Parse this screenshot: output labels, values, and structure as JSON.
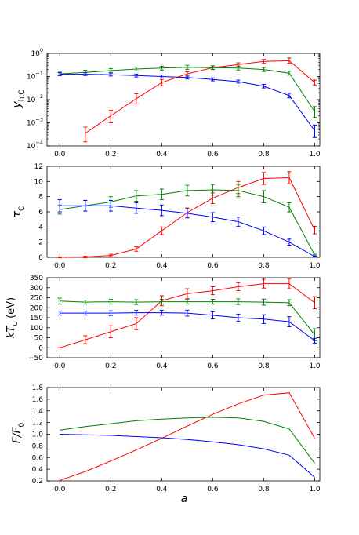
{
  "chart_data": [
    {
      "type": "line",
      "ylabel": "y_{h,C}",
      "xlabel": "",
      "yscale": "log",
      "ylim": [
        0.0001,
        1
      ],
      "xlim": [
        -0.05,
        1.02
      ],
      "yticks": [
        "10^{-4}",
        "10^{-3}",
        "10^{-2}",
        "10^{-1}",
        "10^{0}"
      ],
      "xticks": [
        "0.0",
        "0.2",
        "0.4",
        "0.6",
        "0.8",
        "1.0"
      ],
      "series": [
        {
          "color": "#ff0000",
          "x": [
            0.1,
            0.2,
            0.3,
            0.4,
            0.5,
            0.6,
            0.7,
            0.8,
            0.9,
            1.0
          ],
          "y": [
            0.00035,
            0.002,
            0.011,
            0.055,
            0.13,
            0.24,
            0.33,
            0.45,
            0.48,
            0.055
          ],
          "err_low": [
            0.0002,
            0.001,
            0.0045,
            0.015,
            0.025,
            0.035,
            0.05,
            0.08,
            0.1,
            0.012
          ],
          "err_high": [
            0.0003,
            0.0015,
            0.007,
            0.02,
            0.03,
            0.045,
            0.06,
            0.1,
            0.15,
            0.015
          ]
        },
        {
          "color": "#008000",
          "x": [
            0.0,
            0.1,
            0.2,
            0.3,
            0.4,
            0.5,
            0.6,
            0.7,
            0.8,
            0.9,
            1.0
          ],
          "y": [
            0.13,
            0.15,
            0.18,
            0.21,
            0.23,
            0.25,
            0.24,
            0.23,
            0.2,
            0.14,
            0.003
          ],
          "err_low": [
            0.02,
            0.03,
            0.03,
            0.035,
            0.04,
            0.045,
            0.04,
            0.04,
            0.035,
            0.025,
            0.0013
          ],
          "err_high": [
            0.025,
            0.035,
            0.04,
            0.045,
            0.05,
            0.055,
            0.05,
            0.05,
            0.045,
            0.03,
            0.002
          ]
        },
        {
          "color": "#0000ff",
          "x": [
            0.0,
            0.1,
            0.2,
            0.3,
            0.4,
            0.5,
            0.6,
            0.7,
            0.8,
            0.9,
            1.0
          ],
          "y": [
            0.125,
            0.125,
            0.12,
            0.11,
            0.1,
            0.09,
            0.075,
            0.06,
            0.038,
            0.015,
            0.00045
          ],
          "err_low": [
            0.015,
            0.015,
            0.015,
            0.015,
            0.013,
            0.012,
            0.01,
            0.008,
            0.006,
            0.003,
            0.00022
          ],
          "err_high": [
            0.02,
            0.02,
            0.02,
            0.018,
            0.016,
            0.014,
            0.012,
            0.01,
            0.008,
            0.004,
            0.00035
          ]
        }
      ]
    },
    {
      "type": "line",
      "ylabel": "τ_C",
      "xlabel": "",
      "ylim": [
        0,
        12
      ],
      "xlim": [
        -0.05,
        1.02
      ],
      "yticks": [
        "0",
        "2",
        "4",
        "6",
        "8",
        "10",
        "12"
      ],
      "xticks": [
        "0.0",
        "0.2",
        "0.4",
        "0.6",
        "0.8",
        "1.0"
      ],
      "series": [
        {
          "color": "#ff0000",
          "x": [
            0.0,
            0.1,
            0.2,
            0.3,
            0.4,
            0.5,
            0.6,
            0.7,
            0.8,
            0.9,
            1.0
          ],
          "y": [
            0.0,
            0.05,
            0.25,
            1.1,
            3.5,
            5.9,
            7.8,
            9.2,
            10.4,
            10.5,
            3.6
          ],
          "err": [
            0.05,
            0.1,
            0.15,
            0.3,
            0.5,
            0.6,
            0.7,
            0.8,
            0.8,
            0.8,
            0.5
          ]
        },
        {
          "color": "#008000",
          "x": [
            0.0,
            0.1,
            0.2,
            0.3,
            0.4,
            0.5,
            0.6,
            0.7,
            0.8,
            0.9,
            1.0
          ],
          "y": [
            6.3,
            6.8,
            7.3,
            8.1,
            8.3,
            8.8,
            8.9,
            8.8,
            8.0,
            6.6,
            0.3
          ],
          "err": [
            0.6,
            0.7,
            0.7,
            0.7,
            0.7,
            0.7,
            0.7,
            0.8,
            0.8,
            0.6,
            0.1
          ]
        },
        {
          "color": "#0000ff",
          "x": [
            0.0,
            0.1,
            0.2,
            0.3,
            0.4,
            0.5,
            0.6,
            0.7,
            0.8,
            0.9,
            1.0
          ],
          "y": [
            6.8,
            6.8,
            6.8,
            6.5,
            6.2,
            5.8,
            5.3,
            4.7,
            3.5,
            2.0,
            0.1
          ],
          "err": [
            0.8,
            0.7,
            0.7,
            0.7,
            0.7,
            0.6,
            0.6,
            0.6,
            0.5,
            0.4,
            0.05
          ]
        }
      ]
    },
    {
      "type": "line",
      "ylabel": "kT_C (eV)",
      "xlabel": "",
      "ylim": [
        -50,
        350
      ],
      "xlim": [
        -0.05,
        1.02
      ],
      "yticks": [
        "−50",
        "0",
        "50",
        "100",
        "150",
        "200",
        "250",
        "300",
        "350"
      ],
      "xticks": [
        "0.0",
        "0.2",
        "0.4",
        "0.6",
        "0.8",
        "1.0"
      ],
      "series": [
        {
          "color": "#ff0000",
          "x": [
            0.0,
            0.1,
            0.2,
            0.3,
            0.4,
            0.5,
            0.6,
            0.7,
            0.8,
            0.9,
            1.0
          ],
          "y": [
            0,
            40,
            80,
            120,
            235,
            270,
            285,
            305,
            320,
            320,
            225
          ],
          "err": [
            0,
            20,
            30,
            30,
            25,
            25,
            20,
            20,
            22,
            25,
            30
          ]
        },
        {
          "color": "#008000",
          "x": [
            0.0,
            0.1,
            0.2,
            0.3,
            0.4,
            0.5,
            0.6,
            0.7,
            0.8,
            0.9,
            1.0
          ],
          "y": [
            233,
            228,
            230,
            228,
            230,
            230,
            230,
            230,
            228,
            225,
            65
          ],
          "err": [
            15,
            10,
            12,
            12,
            12,
            12,
            12,
            14,
            15,
            15,
            30
          ]
        },
        {
          "color": "#0000ff",
          "x": [
            0.0,
            0.1,
            0.2,
            0.3,
            0.4,
            0.5,
            0.6,
            0.7,
            0.8,
            0.9,
            1.0
          ],
          "y": [
            173,
            173,
            173,
            175,
            175,
            173,
            162,
            150,
            143,
            130,
            35
          ],
          "err": [
            10,
            10,
            12,
            12,
            12,
            15,
            18,
            18,
            22,
            25,
            12
          ]
        }
      ]
    },
    {
      "type": "line",
      "ylabel": "F/F_0",
      "xlabel": "a",
      "ylim": [
        0.2,
        1.8
      ],
      "xlim": [
        -0.05,
        1.02
      ],
      "yticks": [
        "0.2",
        "0.4",
        "0.6",
        "0.8",
        "1.0",
        "1.2",
        "1.4",
        "1.6",
        "1.8"
      ],
      "xticks": [
        "0.0",
        "0.2",
        "0.4",
        "0.6",
        "0.8",
        "1.0"
      ],
      "series": [
        {
          "color": "#ff0000",
          "x": [
            0.0,
            0.1,
            0.2,
            0.3,
            0.4,
            0.5,
            0.6,
            0.7,
            0.8,
            0.9,
            1.0
          ],
          "y": [
            0.21,
            0.36,
            0.54,
            0.73,
            0.93,
            1.14,
            1.34,
            1.52,
            1.67,
            1.71,
            0.93
          ]
        },
        {
          "color": "#008000",
          "x": [
            0.0,
            0.1,
            0.2,
            0.3,
            0.4,
            0.5,
            0.6,
            0.7,
            0.8,
            0.9,
            1.0
          ],
          "y": [
            1.07,
            1.13,
            1.18,
            1.23,
            1.26,
            1.28,
            1.29,
            1.28,
            1.22,
            1.09,
            0.5
          ]
        },
        {
          "color": "#0000ff",
          "x": [
            0.0,
            0.1,
            0.2,
            0.3,
            0.4,
            0.5,
            0.6,
            0.7,
            0.8,
            0.9,
            1.0
          ],
          "y": [
            1.0,
            0.99,
            0.98,
            0.96,
            0.94,
            0.91,
            0.87,
            0.82,
            0.75,
            0.64,
            0.26
          ]
        }
      ]
    }
  ]
}
